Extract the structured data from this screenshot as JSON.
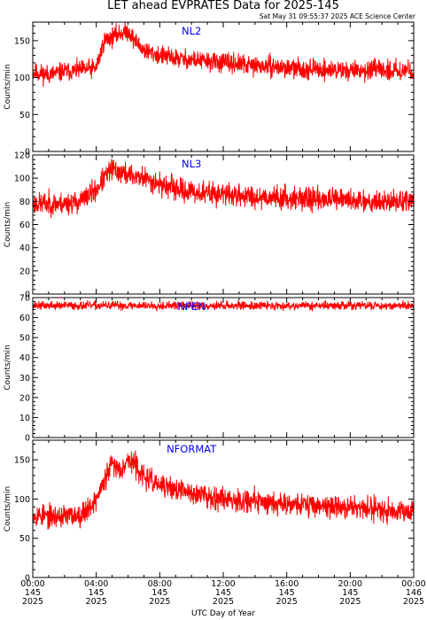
{
  "figure": {
    "title": "LET ahead EVPRATES Data for 2025-145",
    "timestamp": "Sat May 31 09:55:37 2025 ACE Science Center",
    "xlabel": "UTC Day of Year",
    "line_color": "#ff0000",
    "label_color": "#0000ff"
  },
  "chart_data": [
    {
      "type": "line",
      "name": "NL2",
      "ylabel": "Counts/min",
      "ylim": [
        0,
        175
      ],
      "yticks": [
        0,
        50,
        100,
        150
      ],
      "xlim": [
        0,
        24
      ],
      "baseline": [
        [
          0,
          107
        ],
        [
          1,
          104
        ],
        [
          2,
          108
        ],
        [
          3,
          110
        ],
        [
          4,
          113
        ],
        [
          4.5,
          150
        ],
        [
          5,
          155
        ],
        [
          5.5,
          160
        ],
        [
          6,
          163
        ],
        [
          6.5,
          148
        ],
        [
          7,
          137
        ],
        [
          8,
          130
        ],
        [
          9,
          126
        ],
        [
          10,
          124
        ],
        [
          11,
          122
        ],
        [
          12,
          120
        ],
        [
          13,
          118
        ],
        [
          14,
          116
        ],
        [
          15,
          115
        ],
        [
          16,
          113
        ],
        [
          17,
          112
        ],
        [
          18,
          111
        ],
        [
          19,
          110
        ],
        [
          20,
          110
        ],
        [
          21,
          110
        ],
        [
          22,
          110
        ],
        [
          23,
          110
        ],
        [
          24,
          110
        ]
      ],
      "noise": 8,
      "seed": 11
    },
    {
      "type": "line",
      "name": "NL3",
      "ylabel": "Counts/min",
      "ylim": [
        0,
        120
      ],
      "yticks": [
        0,
        20,
        40,
        60,
        80,
        100,
        120
      ],
      "xlim": [
        0,
        24
      ],
      "baseline": [
        [
          0,
          78
        ],
        [
          2,
          78
        ],
        [
          3,
          80
        ],
        [
          3.5,
          85
        ],
        [
          4,
          90
        ],
        [
          4.5,
          100
        ],
        [
          5,
          108
        ],
        [
          5.5,
          105
        ],
        [
          6,
          103
        ],
        [
          7,
          100
        ],
        [
          8,
          95
        ],
        [
          9,
          91
        ],
        [
          10,
          88
        ],
        [
          12,
          86
        ],
        [
          14,
          84
        ],
        [
          16,
          83
        ],
        [
          18,
          82
        ],
        [
          20,
          81
        ],
        [
          22,
          80
        ],
        [
          24,
          80
        ]
      ],
      "noise": 6,
      "seed": 23
    },
    {
      "type": "line",
      "name": "NPEN",
      "ylabel": "Counts/min",
      "ylim": [
        0,
        70
      ],
      "yticks": [
        0,
        10,
        20,
        30,
        40,
        50,
        60,
        70
      ],
      "xlim": [
        0,
        24
      ],
      "baseline": [
        [
          0,
          66
        ],
        [
          24,
          66
        ]
      ],
      "noise": 1.3,
      "seed": 37
    },
    {
      "type": "line",
      "name": "NFORMAT",
      "ylabel": "Counts/min",
      "ylim": [
        0,
        175
      ],
      "yticks": [
        0,
        50,
        100,
        150
      ],
      "xlim": [
        0,
        24
      ],
      "baseline": [
        [
          0,
          80
        ],
        [
          1,
          78
        ],
        [
          2,
          78
        ],
        [
          3,
          80
        ],
        [
          3.5,
          88
        ],
        [
          4,
          100
        ],
        [
          4.5,
          122
        ],
        [
          5,
          145
        ],
        [
          5.5,
          138
        ],
        [
          6,
          150
        ],
        [
          6.5,
          143
        ],
        [
          7,
          128
        ],
        [
          8,
          117
        ],
        [
          9,
          112
        ],
        [
          10,
          108
        ],
        [
          11,
          104
        ],
        [
          12,
          101
        ],
        [
          13,
          99
        ],
        [
          14,
          97
        ],
        [
          15,
          96
        ],
        [
          16,
          95
        ],
        [
          17,
          93
        ],
        [
          18,
          92
        ],
        [
          19,
          90
        ],
        [
          20,
          89
        ],
        [
          21,
          88
        ],
        [
          22,
          87
        ],
        [
          23,
          86
        ],
        [
          24,
          86
        ]
      ],
      "noise": 9,
      "seed": 53
    }
  ],
  "x_axis": {
    "ticks": [
      {
        "time": "00:00",
        "doy": "145",
        "year": "2025"
      },
      {
        "time": "04:00",
        "doy": "145",
        "year": "2025"
      },
      {
        "time": "08:00",
        "doy": "145",
        "year": "2025"
      },
      {
        "time": "12:00",
        "doy": "145",
        "year": "2025"
      },
      {
        "time": "16:00",
        "doy": "145",
        "year": "2025"
      },
      {
        "time": "20:00",
        "doy": "145",
        "year": "2025"
      },
      {
        "time": "00:00",
        "doy": "146",
        "year": "2025"
      }
    ]
  }
}
